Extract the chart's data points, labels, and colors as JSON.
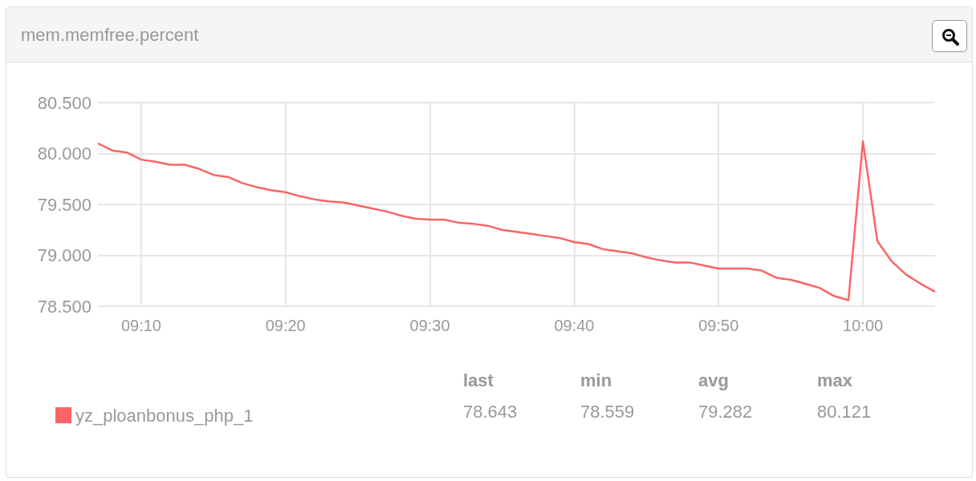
{
  "chart_data": {
    "type": "line",
    "title": "mem.memfree.percent",
    "x": [
      9.1167,
      9.1333,
      9.15,
      9.1667,
      9.1833,
      9.2,
      9.2167,
      9.2333,
      9.25,
      9.2667,
      9.2833,
      9.3,
      9.3167,
      9.3333,
      9.35,
      9.3667,
      9.3833,
      9.4,
      9.4167,
      9.4333,
      9.45,
      9.4667,
      9.4833,
      9.5,
      9.5167,
      9.5333,
      9.55,
      9.5667,
      9.5833,
      9.6,
      9.6167,
      9.6333,
      9.65,
      9.6667,
      9.6833,
      9.7,
      9.7167,
      9.7333,
      9.75,
      9.7667,
      9.7833,
      9.8,
      9.8167,
      9.8333,
      9.85,
      9.8667,
      9.8833,
      9.9,
      9.9167,
      9.9333,
      9.95,
      9.9667,
      9.9833,
      10,
      10.0167,
      10.0333,
      10.05,
      10.0667,
      10.0833
    ],
    "series": [
      {
        "name": "yz_ploanbonus_php_1",
        "color": "#f96566",
        "values": [
          80.1,
          80.03,
          80.01,
          79.94,
          79.92,
          79.89,
          79.89,
          79.85,
          79.79,
          79.77,
          79.71,
          79.67,
          79.64,
          79.62,
          79.58,
          79.55,
          79.53,
          79.52,
          79.49,
          79.46,
          79.43,
          79.39,
          79.36,
          79.35,
          79.35,
          79.32,
          79.31,
          79.29,
          79.25,
          79.23,
          79.21,
          79.19,
          79.17,
          79.13,
          79.11,
          79.06,
          79.04,
          79.02,
          78.98,
          78.95,
          78.93,
          78.93,
          78.9,
          78.87,
          78.87,
          78.87,
          78.85,
          78.78,
          78.76,
          78.72,
          78.68,
          78.6,
          78.559,
          80.121,
          79.14,
          78.94,
          78.81,
          78.72,
          78.643
        ]
      }
    ],
    "xlim": [
      9.1167,
      10.0833
    ],
    "xticks": [
      {
        "value": 9.1667,
        "label": "09:10"
      },
      {
        "value": 9.3333,
        "label": "09:20"
      },
      {
        "value": 9.5,
        "label": "09:30"
      },
      {
        "value": 9.6667,
        "label": "09:40"
      },
      {
        "value": 9.8333,
        "label": "09:50"
      },
      {
        "value": 10,
        "label": "10:00"
      }
    ],
    "ylim": [
      78.5,
      80.5
    ],
    "yticks": [
      {
        "value": 78.5,
        "label": "78.500"
      },
      {
        "value": 79,
        "label": "79.000"
      },
      {
        "value": 79.5,
        "label": "79.500"
      },
      {
        "value": 80,
        "label": "80.000"
      },
      {
        "value": 80.5,
        "label": "80.500"
      }
    ],
    "grid": true,
    "legend": "bottom left",
    "marker": "none",
    "line_style": "solid",
    "annotations": [
      "last",
      "min",
      "avg",
      "max",
      "78.643",
      "78.559",
      "79.282",
      "80.121"
    ]
  }
}
